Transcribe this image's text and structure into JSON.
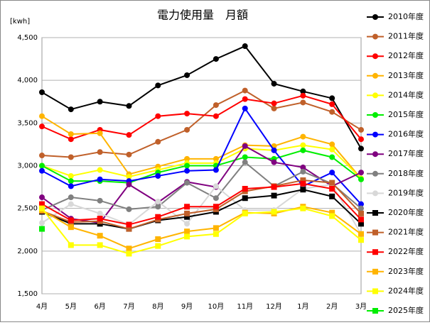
{
  "chart_data": {
    "type": "line",
    "title": "電力使用量　月額",
    "y_label": "[kwh]",
    "categories": [
      "4月",
      "5月",
      "6月",
      "7月",
      "8月",
      "9月",
      "10月",
      "11月",
      "12月",
      "1月",
      "2月",
      "3月"
    ],
    "ylim": [
      1500,
      4500
    ],
    "yticks": [
      {
        "value": 1500,
        "label": "1,500"
      },
      {
        "value": 2000,
        "label": "2,000"
      },
      {
        "value": 2500,
        "label": "2,500"
      },
      {
        "value": 3000,
        "label": "3,000"
      },
      {
        "value": 3500,
        "label": "3,500"
      },
      {
        "value": 4000,
        "label": "4,000"
      },
      {
        "value": 4500,
        "label": "4,500"
      }
    ],
    "grid": true,
    "legend": "right",
    "series": [
      {
        "name": "2010年度",
        "color": "#000000",
        "marker": "circle",
        "values": [
          3860,
          3660,
          3750,
          3700,
          3940,
          4060,
          4250,
          4400,
          3960,
          3870,
          3790,
          3200
        ]
      },
      {
        "name": "2011年度",
        "color": "#c0602a",
        "marker": "circle",
        "values": [
          3120,
          3100,
          3160,
          3130,
          3280,
          3420,
          3710,
          3880,
          3670,
          3740,
          3630,
          3420
        ]
      },
      {
        "name": "2012年度",
        "color": "#ff0000",
        "marker": "circle",
        "values": [
          3460,
          3310,
          3420,
          3360,
          3580,
          3610,
          3580,
          3780,
          3730,
          3820,
          3720,
          3310
        ]
      },
      {
        "name": "2013年度",
        "color": "#ffb400",
        "marker": "circle",
        "values": [
          3580,
          3370,
          3380,
          2900,
          2990,
          3080,
          3080,
          3240,
          3230,
          3340,
          3250,
          2850
        ]
      },
      {
        "name": "2014年度",
        "color": "#ffff00",
        "marker": "circle",
        "values": [
          3000,
          2880,
          2950,
          2870,
          2950,
          3030,
          3030,
          3200,
          3180,
          3240,
          3190,
          2850
        ]
      },
      {
        "name": "2015年度",
        "color": "#00ee00",
        "marker": "circle",
        "values": [
          3000,
          2820,
          2820,
          2800,
          2920,
          3000,
          3000,
          3100,
          3080,
          3180,
          3100,
          2840
        ]
      },
      {
        "name": "2016年度",
        "color": "#0000ff",
        "marker": "circle",
        "values": [
          2940,
          2760,
          2840,
          2820,
          2880,
          2940,
          2950,
          3670,
          3180,
          2760,
          2920,
          2550
        ]
      },
      {
        "name": "2017年度",
        "color": "#800080",
        "marker": "circle",
        "values": [
          2630,
          2380,
          2330,
          2780,
          2570,
          2810,
          2750,
          3230,
          3040,
          2980,
          2760,
          2920
        ]
      },
      {
        "name": "2018年度",
        "color": "#808080",
        "marker": "circle",
        "values": [
          2480,
          2630,
          2590,
          2490,
          2520,
          2800,
          2620,
          3040,
          2760,
          2930,
          2790,
          2500
        ]
      },
      {
        "name": "2019年度",
        "color": "#d8d8d8",
        "marker": "circle",
        "values": [
          2330,
          2550,
          2440,
          2310,
          2580,
          2320,
          2760,
          2480,
          2480,
          2730,
          2780,
          2200
        ]
      },
      {
        "name": "2020年度",
        "color": "#000000",
        "marker": "square",
        "values": [
          2460,
          2320,
          2320,
          2260,
          2360,
          2400,
          2460,
          2620,
          2650,
          2720,
          2640,
          2320
        ]
      },
      {
        "name": "2021年度",
        "color": "#c0602a",
        "marker": "square",
        "values": [
          2470,
          2340,
          2350,
          2260,
          2370,
          2440,
          2490,
          2700,
          2760,
          2830,
          2800,
          2440
        ]
      },
      {
        "name": "2022年度",
        "color": "#ff0000",
        "marker": "square",
        "values": [
          2550,
          2360,
          2380,
          2310,
          2400,
          2520,
          2520,
          2730,
          2750,
          2790,
          2730,
          2370
        ]
      },
      {
        "name": "2023年度",
        "color": "#ffb400",
        "marker": "square",
        "values": [
          2480,
          2280,
          2180,
          2030,
          2140,
          2230,
          2270,
          2450,
          2440,
          2520,
          2450,
          2200
        ]
      },
      {
        "name": "2024年度",
        "color": "#ffff00",
        "marker": "square",
        "values": [
          2500,
          2070,
          2070,
          1970,
          2060,
          2170,
          2200,
          2440,
          2460,
          2500,
          2410,
          2130
        ]
      },
      {
        "name": "2025年度",
        "color": "#00ee00",
        "marker": "square",
        "values": [
          2260,
          null,
          null,
          null,
          null,
          null,
          null,
          null,
          null,
          null,
          null,
          null
        ]
      }
    ]
  }
}
